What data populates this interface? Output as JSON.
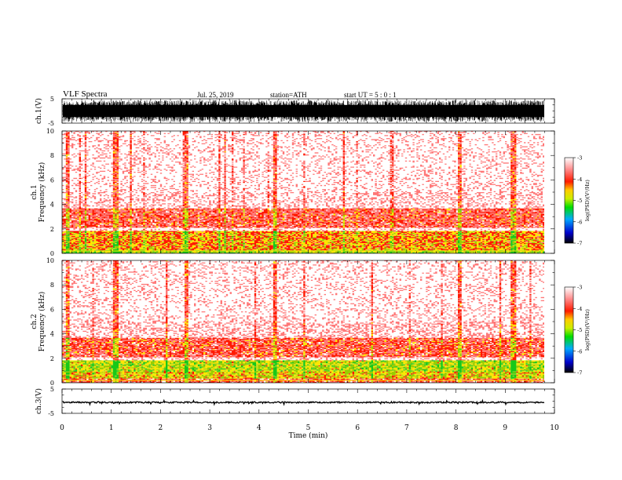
{
  "header": {
    "title": "VLF  Spectra",
    "date": "Jul.  25,  2019",
    "station": "station=ATH",
    "start_ut": "start  UT  =   5 : 0  : 1"
  },
  "chart_data": [
    {
      "type": "line",
      "name": "ch1-waveform",
      "ylabel": "ch.1(V)",
      "ylim": [
        -5,
        5
      ],
      "yticks": [
        "5",
        "-5"
      ],
      "xlim": [
        0,
        10
      ],
      "data_end_min": 9.83,
      "signal": {
        "kind": "dense-noise",
        "amplitude_v": 4.5,
        "color": "#000000"
      }
    },
    {
      "type": "heatmap",
      "name": "ch1-spectrogram",
      "ylabel": "Frequency  (kHz)",
      "ylabel_prefix": "ch.1",
      "ylim": [
        0,
        10
      ],
      "yticks": [
        "0",
        "2",
        "4",
        "6",
        "8",
        "10"
      ],
      "xlim": [
        0,
        10
      ],
      "data_end_min": 9.83,
      "bands_khz": [
        {
          "from": 0,
          "to": 0.25,
          "level": 5.2
        },
        {
          "from": 0.25,
          "to": 1.8,
          "level": 4.6
        },
        {
          "from": 1.8,
          "to": 2.05,
          "level": 3.2
        },
        {
          "from": 2.05,
          "to": 3.65,
          "level": 4.05
        },
        {
          "from": 3.65,
          "to": 5.0,
          "level": 3.35
        },
        {
          "from": 5.0,
          "to": 10,
          "level": 3.2
        }
      ],
      "spikes_min": [
        0.08,
        1.07,
        2.5,
        4.3,
        8.05,
        9.15
      ],
      "colorbar": {
        "label": "log(PSD)(V²/Hz)",
        "ticks": [
          "-3",
          "-4",
          "-5",
          "-6",
          "-7"
        ],
        "range": [
          -7,
          -3
        ]
      }
    },
    {
      "type": "heatmap",
      "name": "ch2-spectrogram",
      "ylabel": "Frequency  (kHz)",
      "ylabel_prefix": "ch.2",
      "ylim": [
        0,
        10
      ],
      "yticks": [
        "0",
        "2",
        "4",
        "6",
        "8",
        "10"
      ],
      "xlim": [
        0,
        10
      ],
      "data_end_min": 9.83,
      "bands_khz": [
        {
          "from": 0,
          "to": 0.3,
          "level": 4.0
        },
        {
          "from": 0.3,
          "to": 0.9,
          "level": 4.9
        },
        {
          "from": 0.9,
          "to": 1.8,
          "level": 5.1
        },
        {
          "from": 1.8,
          "to": 2.05,
          "level": 3.3
        },
        {
          "from": 2.05,
          "to": 3.65,
          "level": 4.05
        },
        {
          "from": 3.65,
          "to": 5.0,
          "level": 3.4
        },
        {
          "from": 5.0,
          "to": 10,
          "level": 3.2
        }
      ],
      "spikes_min": [
        0.08,
        1.07,
        2.5,
        4.3,
        8.05,
        9.15
      ],
      "colorbar": {
        "label": "log(PSD)(V²/Hz)",
        "ticks": [
          "-3",
          "-4",
          "-5",
          "-6",
          "-7"
        ],
        "range": [
          -7,
          -3
        ]
      }
    },
    {
      "type": "line",
      "name": "ch3-waveform",
      "ylabel": "ch.3(V)",
      "ylim": [
        -5,
        5
      ],
      "yticks": [
        "5",
        "-5"
      ],
      "xlim": [
        0,
        10
      ],
      "data_end_min": 9.83,
      "signal": {
        "kind": "flat-noise",
        "offset_v": -0.5,
        "amplitude_v": 0.4,
        "color": "#000000"
      },
      "xlabel": "Time  (min)",
      "xticks": [
        "0",
        "1",
        "2",
        "3",
        "4",
        "5",
        "6",
        "7",
        "8",
        "9",
        "10"
      ]
    }
  ]
}
